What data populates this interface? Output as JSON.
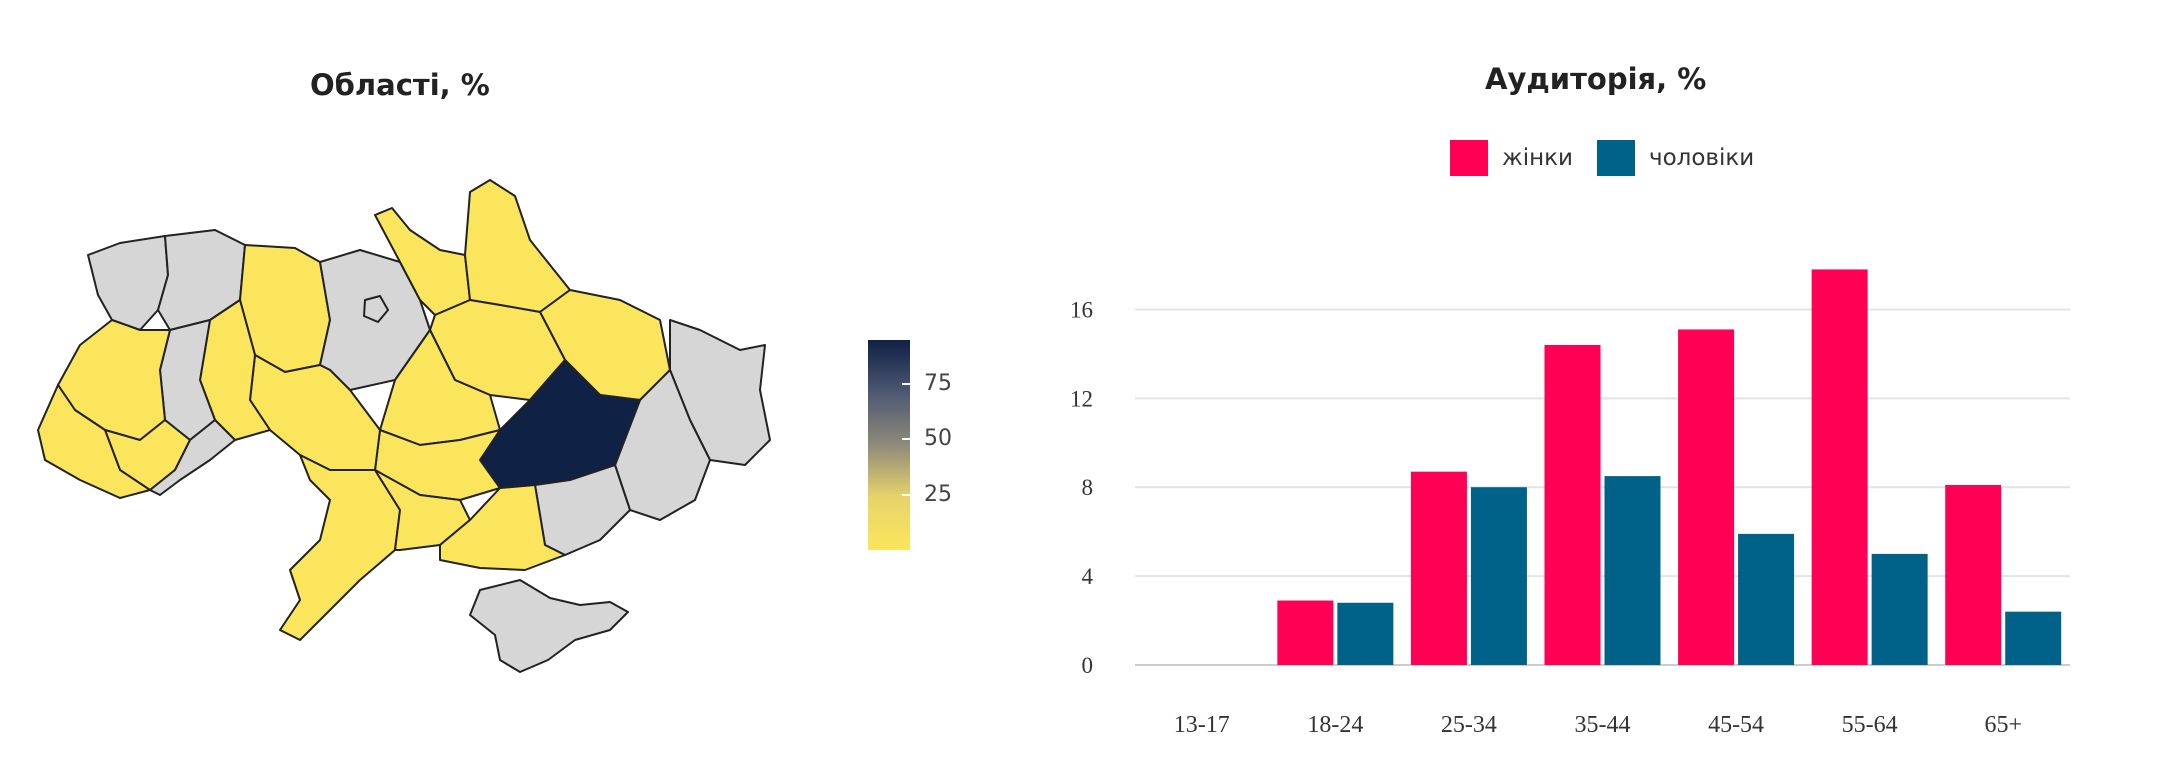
{
  "map": {
    "title": "Області, %",
    "colorbar": {
      "ticks": [
        "75",
        "50",
        "25"
      ],
      "tick_values": [
        75,
        50,
        25
      ],
      "range": [
        0,
        95
      ],
      "gradient": [
        "#fbe55c",
        "#e7d46a",
        "#8f8a7a",
        "#4e5872",
        "#0f2145"
      ]
    },
    "colors": {
      "high": "#0f2145",
      "low": "#fbe55c",
      "no_data": "#d6d6d6",
      "border": "#222222"
    }
  },
  "chart_data": {
    "type": "bar",
    "title": "Аудиторія, %",
    "categories": [
      "13-17",
      "18-24",
      "25-34",
      "35-44",
      "45-54",
      "55-64",
      "65+"
    ],
    "series": [
      {
        "name": "жінки",
        "color": "#ff0055",
        "values": [
          0,
          2.9,
          8.7,
          14.4,
          15.1,
          17.8,
          8.1
        ]
      },
      {
        "name": "чоловіки",
        "color": "#006289",
        "values": [
          0,
          2.8,
          8.0,
          8.5,
          5.9,
          5.0,
          2.4
        ]
      }
    ],
    "yticks": [
      0,
      4,
      8,
      12,
      16
    ],
    "ylim": [
      0,
      18
    ],
    "grid": true,
    "legend": "top"
  }
}
